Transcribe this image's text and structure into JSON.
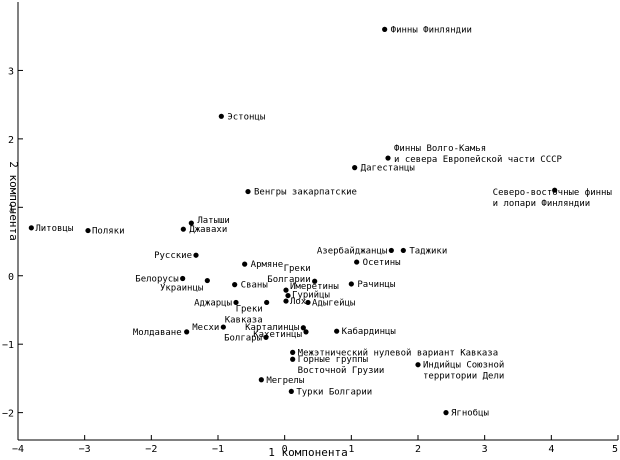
{
  "chart_data": {
    "type": "scatter",
    "title": "",
    "xlabel": "1 компонента",
    "ylabel": "2 компонента",
    "xlim": [
      -4,
      5
    ],
    "ylim": [
      -2.4,
      4
    ],
    "xticks": [
      -4,
      -3,
      -2,
      -1,
      0,
      1,
      2,
      3,
      4,
      5
    ],
    "yticks": [
      -2,
      -1,
      0,
      1,
      2,
      3
    ],
    "grid": false,
    "points": [
      {
        "label": "Финны Финляндии",
        "x": 1.5,
        "y": 3.6
      },
      {
        "label": "Эстонцы",
        "x": -0.95,
        "y": 2.33
      },
      {
        "label": "Финны Волго-Камья",
        "label2": "и севера Европейской части СССР",
        "x": 1.55,
        "y": 1.72
      },
      {
        "label": "Дагестанцы",
        "x": 1.05,
        "y": 1.58
      },
      {
        "label": "Венгры закарпатские",
        "x": -0.55,
        "y": 1.23
      },
      {
        "label": "Северо-восточные финны",
        "label2": "и лопари Финляндии",
        "x": 4.05,
        "y": 1.25
      },
      {
        "label": "Литовцы",
        "x": -3.8,
        "y": 0.7
      },
      {
        "label": "Поляки",
        "x": -2.95,
        "y": 0.66
      },
      {
        "label": "Латыши",
        "x": -1.4,
        "y": 0.77
      },
      {
        "label": "Джавахи",
        "x": -1.52,
        "y": 0.68
      },
      {
        "label": "Русские",
        "x": -1.33,
        "y": 0.3
      },
      {
        "label": "Армяне",
        "x": -0.6,
        "y": 0.17
      },
      {
        "label": "Азербайджанцы",
        "x": 1.6,
        "y": 0.37
      },
      {
        "label": "Таджики",
        "x": 1.78,
        "y": 0.37
      },
      {
        "label": "Осетины",
        "x": 1.08,
        "y": 0.2
      },
      {
        "label": "Белорусы",
        "x": -1.53,
        "y": -0.04
      },
      {
        "label": "Украинцы",
        "x": -1.16,
        "y": -0.07
      },
      {
        "label": "Сваны",
        "x": -0.75,
        "y": -0.13
      },
      {
        "label": "Греки",
        "label2": "Болгарии",
        "x": 0.45,
        "y": -0.08
      },
      {
        "label": "Рачинцы",
        "x": 1.0,
        "y": -0.12
      },
      {
        "label": "Имеретины",
        "x": 0.02,
        "y": -0.21
      },
      {
        "label": "Гурийцы",
        "x": 0.05,
        "y": -0.29
      },
      {
        "label": "Аджарцы",
        "x": -0.73,
        "y": -0.39
      },
      {
        "label": "Греки",
        "label2": "Кавказа",
        "x": -0.27,
        "y": -0.39
      },
      {
        "label": "Лох",
        "x": 0.02,
        "y": -0.37
      },
      {
        "label": "Адыгейцы",
        "x": 0.35,
        "y": -0.39
      },
      {
        "label": "Месхи",
        "x": -0.92,
        "y": -0.75
      },
      {
        "label": "Молдаване",
        "x": -1.47,
        "y": -0.82
      },
      {
        "label": "Карталинцы",
        "x": 0.28,
        "y": -0.76
      },
      {
        "label": "Кахетинцы",
        "x": 0.32,
        "y": -0.82
      },
      {
        "label": "Болгары",
        "x": -0.28,
        "y": -0.9
      },
      {
        "label": "Кабардинцы",
        "x": 0.78,
        "y": -0.81
      },
      {
        "label": "Межэтнический нулевой вариант Кавказа",
        "x": 0.12,
        "y": -1.12
      },
      {
        "label": "Горные группы",
        "label2": "Восточной Грузии",
        "x": 0.12,
        "y": -1.22
      },
      {
        "label": "Индийцы Союзной",
        "label2": "территории Дели",
        "x": 2.0,
        "y": -1.3
      },
      {
        "label": "Мегрелы",
        "x": -0.35,
        "y": -1.52
      },
      {
        "label": "Турки Болгарии",
        "x": 0.1,
        "y": -1.69
      },
      {
        "label": "Ягнобцы",
        "x": 2.42,
        "y": -2.0
      }
    ]
  }
}
